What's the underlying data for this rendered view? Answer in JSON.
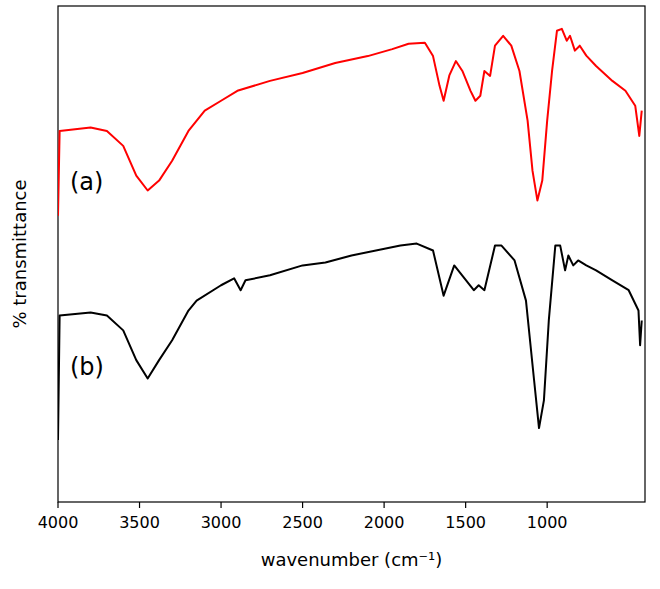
{
  "chart_data": {
    "type": "line",
    "x_label": "wavenumber (cm⁻¹)",
    "y_label": "% transmittance",
    "xlim": [
      4000,
      400
    ],
    "ylim": [
      0,
      100
    ],
    "xticks": [
      4000,
      3500,
      3000,
      2500,
      2000,
      1500,
      1000
    ],
    "tick_labels": "x",
    "grid": false,
    "series": [
      {
        "name": "(a)",
        "color": "#ff0000",
        "x": [
          4000,
          3990,
          3800,
          3700,
          3600,
          3520,
          3450,
          3380,
          3300,
          3200,
          3100,
          3000,
          2900,
          2700,
          2500,
          2300,
          2100,
          1950,
          1850,
          1750,
          1700,
          1660,
          1635,
          1600,
          1560,
          1520,
          1470,
          1440,
          1410,
          1385,
          1350,
          1320,
          1270,
          1220,
          1170,
          1120,
          1090,
          1060,
          1030,
          1000,
          970,
          940,
          910,
          880,
          860,
          830,
          800,
          760,
          700,
          600,
          520,
          460,
          435,
          420
        ],
        "values": [
          57.7,
          74.8,
          75.5,
          74.8,
          71.8,
          65.8,
          62.8,
          64.8,
          68.8,
          74.8,
          78.9,
          80.9,
          82.9,
          84.9,
          86.5,
          88.5,
          89.9,
          91.3,
          92.4,
          92.6,
          89.9,
          83.9,
          80.9,
          86.0,
          88.9,
          86.9,
          82.9,
          80.9,
          81.9,
          86.9,
          85.9,
          92.0,
          94.0,
          92.0,
          86.9,
          76.9,
          66.8,
          60.8,
          64.8,
          76.9,
          86.9,
          95.0,
          95.4,
          93.0,
          94.0,
          91.0,
          92.0,
          90.0,
          87.9,
          84.9,
          82.9,
          79.9,
          73.8,
          78.9
        ]
      },
      {
        "name": "(b)",
        "color": "#000000",
        "x": [
          4000,
          3990,
          3800,
          3700,
          3600,
          3520,
          3450,
          3380,
          3300,
          3200,
          3150,
          3000,
          2920,
          2880,
          2850,
          2700,
          2500,
          2360,
          2200,
          1900,
          1800,
          1700,
          1635,
          1570,
          1450,
          1420,
          1385,
          1320,
          1280,
          1200,
          1130,
          1080,
          1050,
          1020,
          990,
          950,
          920,
          890,
          870,
          840,
          810,
          760,
          700,
          600,
          500,
          440,
          430,
          420
        ],
        "values": [
          12.5,
          37.6,
          38.2,
          37.6,
          34.6,
          28.6,
          24.9,
          28.6,
          32.6,
          38.6,
          40.6,
          43.7,
          45.1,
          42.7,
          44.7,
          45.7,
          47.7,
          48.3,
          49.7,
          51.7,
          52.1,
          50.7,
          41.6,
          47.7,
          42.7,
          43.7,
          42.7,
          51.7,
          51.7,
          48.7,
          40.6,
          24.5,
          14.9,
          20.5,
          36.6,
          51.7,
          51.7,
          46.7,
          49.7,
          47.7,
          48.7,
          47.7,
          46.7,
          44.7,
          42.7,
          38.6,
          31.6,
          36.6
        ]
      }
    ]
  }
}
